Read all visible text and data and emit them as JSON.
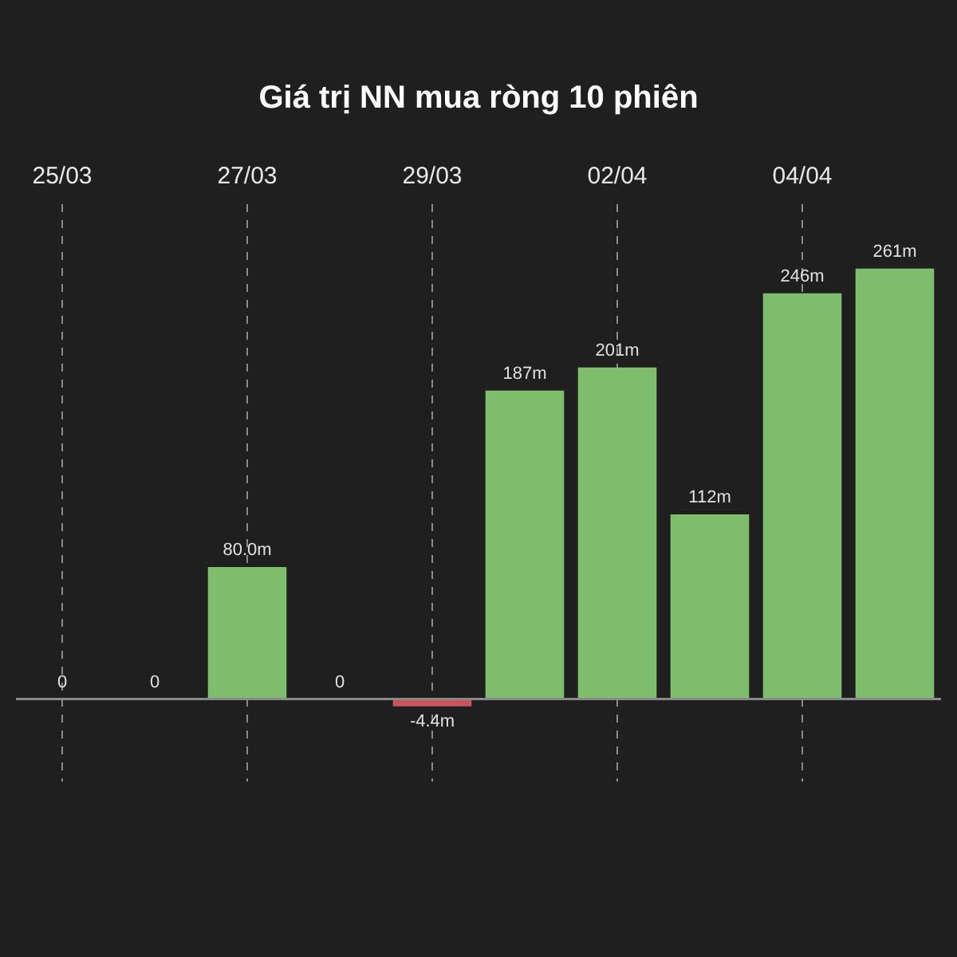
{
  "chart_data": {
    "type": "bar",
    "title": "Giá trị NN mua ròng 10 phiên",
    "categories": [
      "25/03",
      null,
      "27/03",
      null,
      "29/03",
      null,
      "02/04",
      null,
      "04/04",
      null
    ],
    "values": [
      0,
      0,
      80.0,
      0,
      -4.4,
      187,
      201,
      112,
      246,
      261
    ],
    "colors": [
      "#7dbd6b",
      "#7dbd6b",
      "#7dbd6b",
      "#7dbd6b",
      "#c9545c",
      "#7dbd6b",
      "#7dbd6b",
      "#7dbd6b",
      "#7dbd6b",
      "#7dbd6b"
    ],
    "value_labels": [
      "0",
      "0",
      "80.0m",
      "0",
      "-4.4m",
      "187m",
      "201m",
      "112m",
      "246m",
      "261m"
    ],
    "grid": "x",
    "legend": false
  }
}
